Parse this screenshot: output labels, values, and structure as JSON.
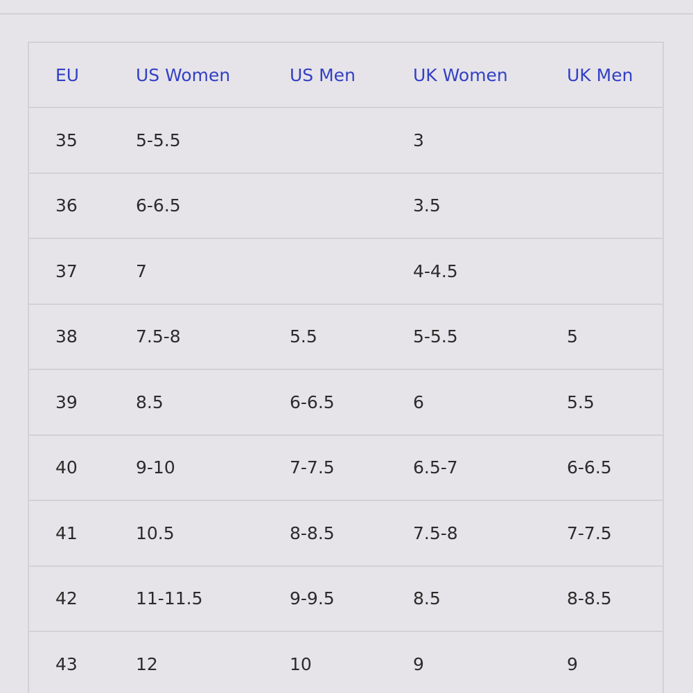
{
  "table": {
    "headers": [
      "EU",
      "US Women",
      "US Men",
      "UK Women",
      "UK Men"
    ],
    "rows": [
      [
        "35",
        "5-5.5",
        null,
        "3",
        null
      ],
      [
        "36",
        "6-6.5",
        null,
        "3.5",
        null
      ],
      [
        "37",
        "7",
        null,
        "4-4.5",
        null
      ],
      [
        "38",
        "7.5-8",
        "5.5",
        "5-5.5",
        "5"
      ],
      [
        "39",
        "8.5",
        "6-6.5",
        "6",
        "5.5"
      ],
      [
        "40",
        "9-10",
        "7-7.5",
        "6.5-7",
        "6-6.5"
      ],
      [
        "41",
        "10.5",
        "8-8.5",
        "7.5-8",
        "7-7.5"
      ],
      [
        "42",
        "11-11.5",
        "9-9.5",
        "8.5",
        "8-8.5"
      ],
      [
        "43",
        "12",
        "10",
        "9",
        "9"
      ]
    ]
  }
}
